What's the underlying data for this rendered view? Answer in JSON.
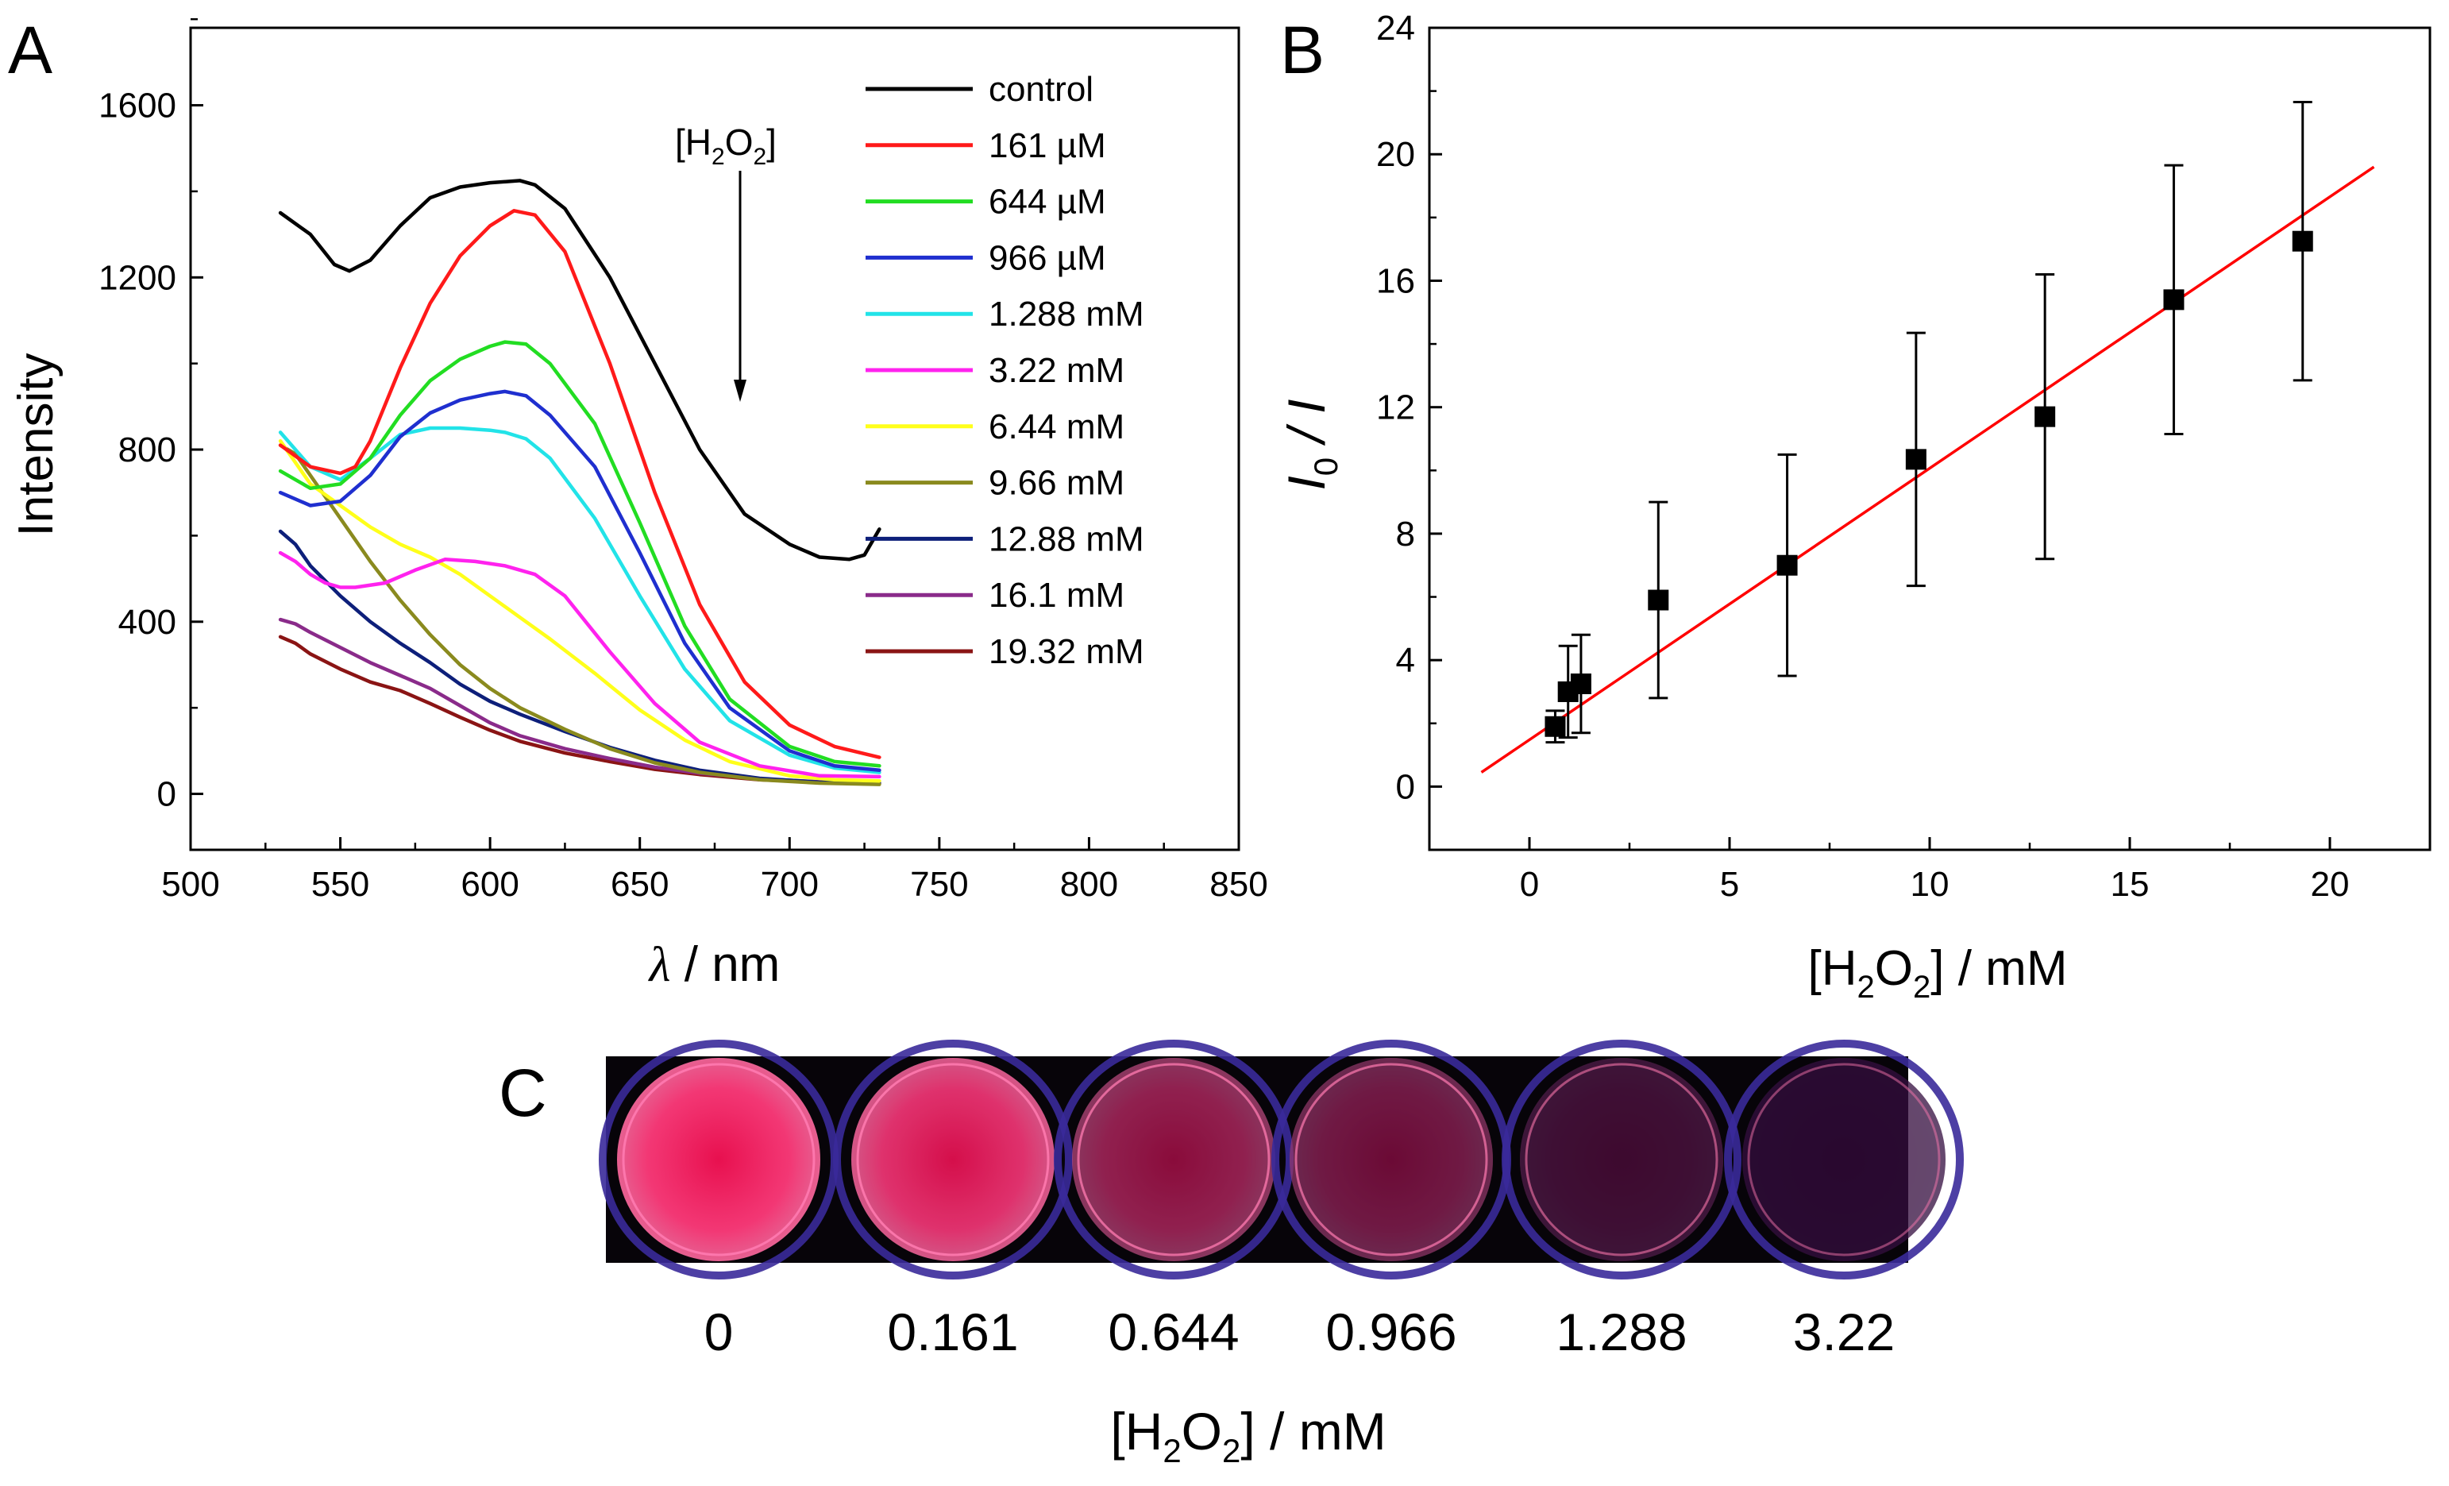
{
  "panels": {
    "a": "A",
    "b": "B",
    "c": "C"
  },
  "chart_data": [
    {
      "type": "line",
      "panel": "A",
      "xlabel_symbol": "λ",
      "xlabel_unit": " / nm",
      "ylabel": "Intensity",
      "xlim": [
        500,
        850
      ],
      "ylim": [
        -130,
        1780
      ],
      "xticks": [
        500,
        550,
        600,
        650,
        700,
        750,
        800,
        850
      ],
      "yticks": [
        0,
        400,
        800,
        1200,
        1600
      ],
      "annotation": {
        "bracket_open": "[H",
        "sub1": "2",
        "mid": "O",
        "sub2": "2",
        "bracket_close": "]"
      },
      "series": [
        {
          "name": "control",
          "color": "#000000",
          "x": [
            530,
            540,
            548,
            553,
            560,
            570,
            580,
            590,
            600,
            610,
            615,
            625,
            640,
            655,
            670,
            685,
            700,
            710,
            720,
            725,
            730
          ],
          "y": [
            1350,
            1300,
            1230,
            1215,
            1240,
            1320,
            1385,
            1410,
            1420,
            1425,
            1415,
            1360,
            1200,
            1000,
            800,
            650,
            580,
            550,
            545,
            555,
            615
          ]
        },
        {
          "name": "161 µM",
          "color": "#ff1a1a",
          "x": [
            530,
            540,
            550,
            555,
            560,
            570,
            580,
            590,
            600,
            608,
            615,
            625,
            640,
            655,
            670,
            685,
            700,
            715,
            730
          ],
          "y": [
            810,
            760,
            745,
            760,
            820,
            990,
            1140,
            1250,
            1320,
            1355,
            1345,
            1260,
            1000,
            700,
            440,
            260,
            160,
            110,
            85
          ]
        },
        {
          "name": "644 µM",
          "color": "#22dd22",
          "x": [
            530,
            540,
            550,
            560,
            570,
            580,
            590,
            600,
            605,
            612,
            620,
            635,
            650,
            665,
            680,
            700,
            715,
            730
          ],
          "y": [
            750,
            710,
            720,
            780,
            880,
            960,
            1010,
            1040,
            1050,
            1045,
            1000,
            860,
            630,
            390,
            220,
            110,
            75,
            65
          ]
        },
        {
          "name": "966 µM",
          "color": "#1f2fcf",
          "x": [
            530,
            540,
            550,
            560,
            570,
            580,
            590,
            600,
            605,
            612,
            620,
            635,
            650,
            665,
            680,
            700,
            715,
            730
          ],
          "y": [
            700,
            670,
            680,
            740,
            830,
            885,
            915,
            930,
            935,
            925,
            880,
            760,
            560,
            350,
            200,
            100,
            65,
            55
          ]
        },
        {
          "name": "1.288 mM",
          "color": "#22e3e8",
          "x": [
            530,
            540,
            550,
            560,
            570,
            580,
            590,
            600,
            605,
            612,
            620,
            635,
            650,
            665,
            680,
            700,
            715,
            730
          ],
          "y": [
            840,
            760,
            730,
            780,
            835,
            850,
            850,
            845,
            840,
            825,
            780,
            640,
            460,
            290,
            170,
            90,
            60,
            50
          ]
        },
        {
          "name": "3.22 mM",
          "color": "#ff22ee",
          "x": [
            530,
            535,
            540,
            545,
            550,
            555,
            565,
            575,
            585,
            595,
            605,
            615,
            625,
            640,
            655,
            670,
            690,
            710,
            730
          ],
          "y": [
            560,
            540,
            510,
            490,
            480,
            480,
            490,
            520,
            545,
            540,
            530,
            510,
            460,
            330,
            210,
            120,
            65,
            42,
            40
          ]
        },
        {
          "name": "6.44 mM",
          "color": "#ffff1a",
          "x": [
            530,
            540,
            550,
            560,
            570,
            580,
            590,
            600,
            610,
            620,
            635,
            650,
            665,
            680,
            700,
            715,
            730
          ],
          "y": [
            820,
            720,
            670,
            620,
            580,
            550,
            510,
            460,
            410,
            360,
            280,
            195,
            125,
            75,
            42,
            33,
            30
          ]
        },
        {
          "name": "9.66 mM",
          "color": "#8a8a1e",
          "x": [
            530,
            535,
            540,
            550,
            560,
            570,
            580,
            590,
            600,
            610,
            625,
            640,
            655,
            670,
            690,
            710,
            730
          ],
          "y": [
            810,
            790,
            740,
            640,
            540,
            450,
            370,
            300,
            245,
            200,
            150,
            105,
            72,
            50,
            33,
            25,
            22
          ]
        },
        {
          "name": "12.88 mM",
          "color": "#0d1f7a",
          "x": [
            530,
            535,
            540,
            550,
            560,
            570,
            580,
            590,
            600,
            610,
            625,
            640,
            655,
            670,
            690,
            710,
            730
          ],
          "y": [
            610,
            580,
            530,
            460,
            400,
            350,
            305,
            255,
            215,
            185,
            145,
            108,
            78,
            55,
            36,
            27,
            25
          ]
        },
        {
          "name": "16.1 mM",
          "color": "#8a2b8a",
          "x": [
            530,
            535,
            540,
            550,
            560,
            570,
            580,
            590,
            600,
            610,
            625,
            640,
            655,
            670,
            690,
            710,
            730
          ],
          "y": [
            405,
            395,
            375,
            340,
            305,
            275,
            245,
            205,
            165,
            135,
            105,
            82,
            62,
            48,
            35,
            28,
            25
          ]
        },
        {
          "name": "19.32 mM",
          "color": "#8a1414",
          "x": [
            530,
            535,
            540,
            550,
            560,
            570,
            580,
            590,
            600,
            610,
            625,
            640,
            655,
            670,
            690,
            710,
            730
          ],
          "y": [
            365,
            350,
            325,
            290,
            260,
            240,
            210,
            178,
            148,
            122,
            95,
            75,
            57,
            45,
            33,
            27,
            24
          ]
        }
      ]
    },
    {
      "type": "scatter",
      "panel": "B",
      "xlabel": {
        "bracket_open": "[H",
        "sub1": "2",
        "mid": "O",
        "sub2": "2",
        "unit": "] / mM"
      },
      "ylabel": {
        "main": "I",
        "sub": "0",
        "rest": " / I"
      },
      "xlim": [
        -2.5,
        22.5
      ],
      "ylim": [
        -2,
        24
      ],
      "xticks": [
        0,
        5,
        10,
        15,
        20
      ],
      "yticks": [
        0,
        4,
        8,
        12,
        16,
        20,
        24
      ],
      "points": [
        {
          "x": 0.644,
          "y": 1.9,
          "err": 0.5
        },
        {
          "x": 0.966,
          "y": 3.0,
          "err": 1.45
        },
        {
          "x": 1.288,
          "y": 3.25,
          "err": 1.55
        },
        {
          "x": 3.22,
          "y": 5.9,
          "err": 3.1
        },
        {
          "x": 6.44,
          "y": 7.0,
          "err": 3.5
        },
        {
          "x": 9.66,
          "y": 10.35,
          "err": 4.0
        },
        {
          "x": 12.88,
          "y": 11.7,
          "err": 4.5
        },
        {
          "x": 16.1,
          "y": 15.4,
          "err": 4.25
        },
        {
          "x": 19.32,
          "y": 17.25,
          "err": 4.4
        }
      ],
      "fit": {
        "color": "#ff0000",
        "x": [
          -1.2,
          21.1
        ],
        "y": [
          0.45,
          19.6
        ]
      }
    }
  ],
  "photo": {
    "labels": [
      "0",
      "0.161",
      "0.644",
      "0.966",
      "1.288",
      "3.22"
    ],
    "intensities": [
      1.0,
      0.95,
      0.72,
      0.6,
      0.35,
      0.15
    ],
    "xlabel": {
      "bracket_open": "[H",
      "sub1": "2",
      "mid": "O",
      "sub2": "2",
      "unit": "] / mM"
    }
  }
}
